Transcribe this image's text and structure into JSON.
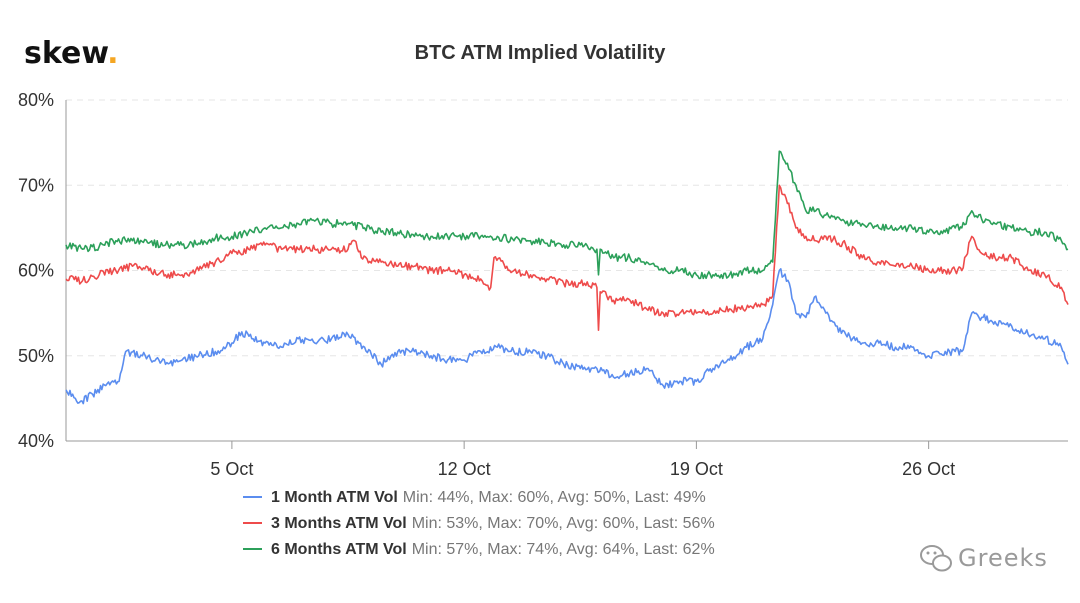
{
  "brand": {
    "logo_text": "skew",
    "logo_dot": "."
  },
  "watermark": {
    "text": "Greeks",
    "icon": "wechat-icon"
  },
  "chart_data": {
    "type": "line",
    "title": "BTC ATM Implied Volatility",
    "xlabel": "",
    "ylabel": "",
    "ylim": [
      40,
      80
    ],
    "y_ticks": [
      "40%",
      "50%",
      "60%",
      "70%",
      "80%"
    ],
    "x_ticks": [
      "5 Oct",
      "12 Oct",
      "19 Oct",
      "26 Oct"
    ],
    "x_range_days": [
      0,
      30.2
    ],
    "x_tick_positions_days": [
      5,
      12,
      19,
      26
    ],
    "grid": true,
    "legend_position": "bottom",
    "colors": {
      "1m": "#5b8def",
      "3m": "#ee4b4b",
      "6m": "#2ca05a",
      "grid": "#e6e6e6",
      "axis": "#999999"
    },
    "series": [
      {
        "key": "1m",
        "name": "1 Month ATM Vol",
        "stats": "Min: 44%, Max: 60%, Avg: 50%, Last: 49%",
        "color": "#5b8def",
        "x": [
          0,
          0.4,
          0.8,
          1.2,
          1.6,
          1.8,
          2.3,
          2.8,
          3.0,
          3.5,
          4.0,
          4.5,
          5.0,
          5.3,
          5.6,
          6.0,
          6.5,
          7.0,
          7.5,
          8.0,
          8.5,
          9.0,
          9.5,
          10.0,
          10.5,
          11.0,
          11.5,
          12.0,
          12.5,
          13.0,
          13.5,
          14.0,
          14.5,
          15.0,
          15.5,
          16.0,
          16.5,
          17.0,
          17.5,
          18.0,
          18.5,
          19.0,
          19.5,
          20.0,
          20.5,
          21.0,
          21.3,
          21.5,
          21.8,
          22.0,
          22.3,
          22.6,
          22.9,
          23.2,
          23.5,
          24.0,
          24.5,
          25.0,
          25.5,
          26.0,
          26.5,
          26.8,
          27.0,
          27.3,
          27.6,
          28.0,
          28.5,
          29.0,
          29.5,
          30.0,
          30.2
        ],
        "values": [
          46,
          44.5,
          45.5,
          46.5,
          47,
          50.5,
          50,
          49.5,
          49,
          49.5,
          50,
          50.5,
          51.5,
          52.8,
          52,
          51.5,
          51,
          52,
          51.5,
          52,
          52.5,
          51,
          49,
          50.5,
          50.5,
          50,
          49.5,
          49.5,
          50.5,
          51,
          50.5,
          50.5,
          50,
          49,
          48.5,
          48.5,
          47.5,
          48,
          48.5,
          46.5,
          47,
          47,
          48.5,
          49.5,
          51,
          52,
          56,
          60,
          58.5,
          55,
          54.5,
          57,
          55,
          53.5,
          52.5,
          51.5,
          51.5,
          51,
          51,
          50,
          50.5,
          50.5,
          50.5,
          55,
          54.5,
          54,
          53.5,
          52.5,
          52,
          51,
          49
        ]
      },
      {
        "key": "3m",
        "name": "3 Months ATM Vol",
        "stats": "Min: 53%, Max: 70%, Avg: 60%, Last: 56%",
        "color": "#ee4b4b",
        "x": [
          0,
          0.5,
          1.0,
          1.5,
          2.0,
          2.5,
          3.0,
          3.5,
          4.0,
          4.5,
          5.0,
          5.5,
          6.0,
          6.5,
          7.0,
          7.5,
          8.0,
          8.5,
          8.7,
          8.9,
          9.5,
          10.0,
          10.5,
          11.0,
          11.5,
          12.0,
          12.5,
          12.8,
          12.9,
          13.5,
          14.0,
          14.5,
          15.0,
          15.5,
          16.0,
          16.05,
          16.1,
          16.3,
          16.5,
          17.0,
          17.5,
          18.0,
          18.5,
          19.0,
          19.5,
          20.0,
          20.5,
          21.0,
          21.3,
          21.5,
          21.7,
          22.0,
          22.3,
          22.6,
          22.9,
          23.2,
          23.5,
          24.0,
          24.5,
          25.0,
          25.5,
          26.0,
          26.5,
          26.8,
          27.0,
          27.3,
          27.6,
          28.0,
          28.5,
          29.0,
          29.5,
          30.0,
          30.2
        ],
        "values": [
          59,
          58.8,
          59.5,
          60,
          60.5,
          60,
          59.5,
          59.5,
          60,
          61,
          62,
          62.5,
          63,
          62.5,
          62.5,
          62.5,
          62.5,
          62.5,
          63.5,
          61.5,
          61,
          60.5,
          60.5,
          60,
          60,
          59.5,
          59,
          58,
          61.5,
          60,
          59.5,
          59,
          58.5,
          58.5,
          58,
          53,
          57.5,
          57,
          56.5,
          56.5,
          55.5,
          55,
          55,
          55,
          55,
          55.5,
          55.5,
          56,
          57,
          70,
          68.5,
          65,
          64,
          63.5,
          64,
          63.5,
          63,
          61.5,
          61,
          60.5,
          60.5,
          60,
          60,
          60,
          60,
          64,
          62,
          61.5,
          61.5,
          60,
          59.5,
          58,
          56
        ]
      },
      {
        "key": "6m",
        "name": "6 Months ATM Vol",
        "stats": "Min: 57%, Max: 74%, Avg: 64%, Last: 62%",
        "color": "#2ca05a",
        "x": [
          0,
          0.5,
          1.0,
          1.5,
          2.0,
          2.5,
          3.0,
          3.5,
          4.0,
          4.5,
          5.0,
          5.5,
          6.0,
          6.5,
          7.0,
          7.5,
          8.0,
          8.5,
          9.0,
          9.5,
          10.0,
          10.5,
          11.0,
          11.5,
          12.0,
          12.5,
          13.0,
          13.5,
          14.0,
          14.5,
          15.0,
          15.5,
          16.0,
          16.05,
          16.1,
          16.3,
          16.5,
          17.0,
          17.5,
          18.0,
          18.5,
          19.0,
          19.5,
          20.0,
          20.5,
          21.0,
          21.3,
          21.5,
          21.7,
          22.0,
          22.3,
          22.6,
          22.9,
          23.2,
          23.5,
          24.0,
          24.5,
          25.0,
          25.5,
          26.0,
          26.5,
          26.8,
          27.0,
          27.3,
          27.6,
          28.0,
          28.5,
          29.0,
          29.5,
          30.0,
          30.2
        ],
        "values": [
          63,
          62.5,
          62.8,
          63.5,
          63.5,
          63.2,
          63,
          63,
          63.2,
          63.8,
          64,
          64.5,
          65,
          65,
          65.5,
          65.8,
          65.5,
          65.5,
          65,
          64.5,
          64.5,
          64,
          64,
          64,
          64,
          64,
          64,
          63.5,
          63.5,
          63.2,
          63,
          63,
          62.5,
          59.5,
          62.5,
          62,
          61.5,
          61.5,
          61,
          60,
          60,
          59.5,
          59.5,
          59.5,
          60,
          60,
          61,
          74,
          72.5,
          70,
          67,
          67,
          66.5,
          66,
          65.5,
          65.5,
          65,
          65,
          65,
          64.5,
          64.5,
          65,
          65,
          67,
          66,
          65.5,
          65,
          64.5,
          64.5,
          63.5,
          62.5
        ]
      }
    ]
  }
}
